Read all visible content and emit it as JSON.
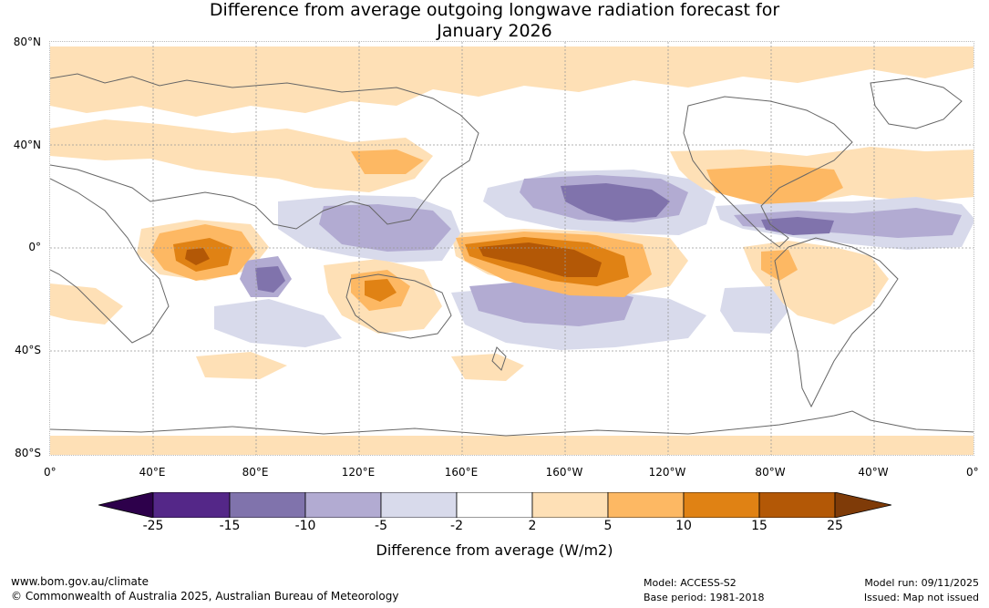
{
  "title": {
    "line1": "Difference from average outgoing longwave radiation forecast for",
    "line2": "January 2026"
  },
  "map": {
    "lat_labels": [
      "80°N",
      "40°N",
      "0°",
      "40°S",
      "80°S"
    ],
    "lon_labels": [
      "0°",
      "40°E",
      "80°E",
      "120°E",
      "160°E",
      "160°W",
      "120°W",
      "80°W",
      "40°W",
      "0°"
    ],
    "anomaly_palette": {
      "lt_-25": "#2d004b",
      "-25_-15": "#542788",
      "-15_-10": "#8073ac",
      "-10_-5": "#b2abd2",
      "-5_-2": "#d8daeb",
      "-2_2": "#ffffff",
      "2_5": "#fee0b6",
      "5_10": "#fdb863",
      "10_15": "#e08214",
      "15_25": "#b35806",
      "gt_25": "#7f3b08"
    },
    "coastline_color": "#666666"
  },
  "colorbar": {
    "ticks": [
      "-25",
      "-15",
      "-10",
      "-5",
      "-2",
      "2",
      "5",
      "10",
      "15",
      "25"
    ],
    "colors": [
      "#2d004b",
      "#542788",
      "#8073ac",
      "#b2abd2",
      "#d8daeb",
      "#ffffff",
      "#fee0b6",
      "#fdb863",
      "#e08214",
      "#b35806",
      "#7f3b08"
    ],
    "label": "Difference from average (W/m2)"
  },
  "footer": {
    "website": "www.bom.gov.au/climate",
    "copyright": "© Commonwealth of Australia 2025, Australian Bureau of Meteorology",
    "model": "Model: ACCESS-S2",
    "base_period": "Base period: 1981-2018",
    "model_run": "Model run: 09/11/2025",
    "issued": "Issued: Map not issued"
  }
}
